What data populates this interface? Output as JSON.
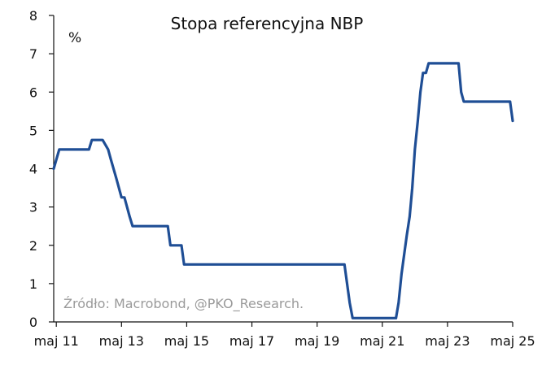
{
  "chart_data": {
    "type": "line",
    "title": "Stopa referencyjna NBP",
    "unit_label": "%",
    "source_note": "Źródło: Macrobond, @PKO_Research.",
    "xlim": [
      2011.25,
      2025.33
    ],
    "ylim": [
      0,
      8
    ],
    "yticks": [
      "0",
      "1",
      "2",
      "3",
      "4",
      "5",
      "6",
      "7",
      "8"
    ],
    "xticks": [
      {
        "label": "maj 11",
        "x": 2011.33
      },
      {
        "label": "maj 13",
        "x": 2013.33
      },
      {
        "label": "maj 15",
        "x": 2015.33
      },
      {
        "label": "maj 17",
        "x": 2017.33
      },
      {
        "label": "maj 19",
        "x": 2019.33
      },
      {
        "label": "maj 21",
        "x": 2021.33
      },
      {
        "label": "maj 23",
        "x": 2023.33
      },
      {
        "label": "maj 25",
        "x": 2025.33
      }
    ],
    "grid": false,
    "series": [
      {
        "color": "#1f4e95",
        "points": [
          [
            2011.25,
            4.0
          ],
          [
            2011.42,
            4.5
          ],
          [
            2012.33,
            4.5
          ],
          [
            2012.42,
            4.75
          ],
          [
            2012.75,
            4.75
          ],
          [
            2012.92,
            4.5
          ],
          [
            2013.0,
            4.25
          ],
          [
            2013.17,
            3.75
          ],
          [
            2013.33,
            3.25
          ],
          [
            2013.42,
            3.25
          ],
          [
            2013.5,
            3.0
          ],
          [
            2013.58,
            2.75
          ],
          [
            2013.67,
            2.5
          ],
          [
            2014.75,
            2.5
          ],
          [
            2014.83,
            2.0
          ],
          [
            2015.17,
            2.0
          ],
          [
            2015.25,
            1.5
          ],
          [
            2020.17,
            1.5
          ],
          [
            2020.25,
            1.0
          ],
          [
            2020.33,
            0.5
          ],
          [
            2020.42,
            0.1
          ],
          [
            2021.75,
            0.1
          ],
          [
            2021.83,
            0.5
          ],
          [
            2021.92,
            1.25
          ],
          [
            2022.0,
            1.75
          ],
          [
            2022.08,
            2.25
          ],
          [
            2022.17,
            2.75
          ],
          [
            2022.25,
            3.5
          ],
          [
            2022.33,
            4.5
          ],
          [
            2022.42,
            5.25
          ],
          [
            2022.5,
            6.0
          ],
          [
            2022.58,
            6.5
          ],
          [
            2022.67,
            6.5
          ],
          [
            2022.75,
            6.75
          ],
          [
            2023.67,
            6.75
          ],
          [
            2023.75,
            6.0
          ],
          [
            2023.83,
            5.75
          ],
          [
            2025.25,
            5.75
          ],
          [
            2025.33,
            5.25
          ]
        ]
      }
    ]
  }
}
